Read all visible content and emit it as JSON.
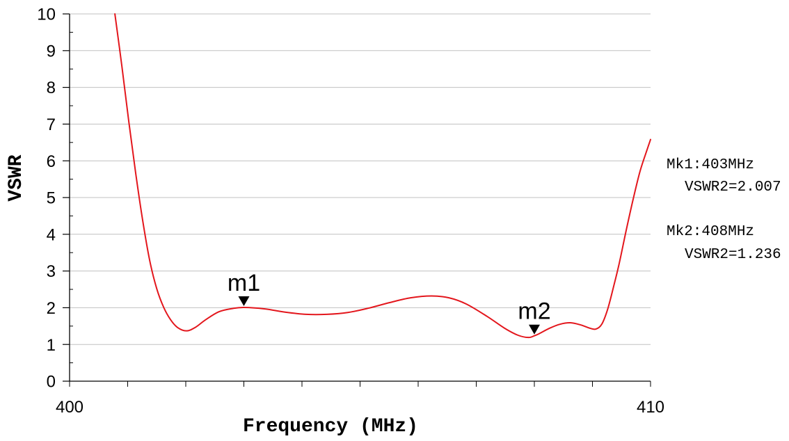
{
  "chart_data": {
    "type": "line",
    "xlabel": "Frequency (MHz)",
    "ylabel": "VSWR",
    "xlim": [
      400,
      410
    ],
    "ylim": [
      0,
      10
    ],
    "x_ticks": [
      400,
      410
    ],
    "x_minor_step": 1,
    "y_ticks": [
      0,
      1,
      2,
      3,
      4,
      5,
      6,
      7,
      8,
      9,
      10
    ],
    "y_minor_step": 0.5,
    "grid": {
      "x": false,
      "y": true
    },
    "series": [
      {
        "color": "#e3161c",
        "x": [
          400.78,
          400.9,
          401.02,
          401.14,
          401.26,
          401.38,
          401.5,
          401.62,
          401.74,
          401.86,
          402.01,
          402.16,
          402.34,
          402.57,
          402.81,
          403.0,
          403.35,
          403.71,
          404.07,
          404.43,
          404.79,
          405.15,
          405.51,
          405.87,
          406.23,
          406.53,
          406.83,
          407.19,
          407.49,
          407.72,
          407.9,
          408.0,
          408.08,
          408.26,
          408.44,
          408.62,
          408.8,
          408.96,
          409.06,
          409.16,
          409.26,
          409.36,
          409.46,
          409.58,
          409.7,
          409.82,
          409.94,
          410.0
        ],
        "y": [
          10.0,
          8.58,
          7.06,
          5.64,
          4.36,
          3.28,
          2.52,
          2.01,
          1.67,
          1.46,
          1.37,
          1.46,
          1.67,
          1.89,
          1.98,
          2.007,
          1.97,
          1.88,
          1.82,
          1.82,
          1.87,
          1.99,
          2.14,
          2.27,
          2.32,
          2.27,
          2.1,
          1.76,
          1.44,
          1.25,
          1.19,
          1.236,
          1.29,
          1.44,
          1.55,
          1.59,
          1.53,
          1.44,
          1.42,
          1.55,
          1.95,
          2.55,
          3.2,
          4.1,
          4.95,
          5.72,
          6.3,
          6.58
        ]
      }
    ],
    "markers": [
      {
        "label": "m1",
        "x": 403,
        "y": 2.007
      },
      {
        "label": "m2",
        "x": 408,
        "y": 1.236
      }
    ],
    "marker_readouts": [
      {
        "line1": "Mk1:403MHz",
        "line2": "VSWR2=2.007"
      },
      {
        "line1": "Mk2:408MHz",
        "line2": "VSWR2=1.236"
      }
    ]
  },
  "colors": {
    "grid": "#c0c0c0",
    "axis": "#000000",
    "marker": "#000000"
  }
}
